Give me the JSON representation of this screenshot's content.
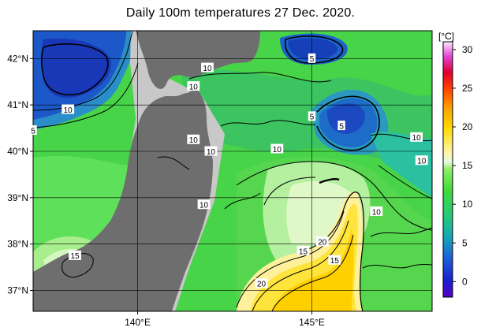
{
  "title": "Daily 100m temperatures 27 Dec. 2020.",
  "lat_ticks": [
    {
      "label": "42°N",
      "value": 42
    },
    {
      "label": "41°N",
      "value": 41
    },
    {
      "label": "40°N",
      "value": 40
    },
    {
      "label": "39°N",
      "value": 39
    },
    {
      "label": "38°N",
      "value": 38
    },
    {
      "label": "37°N",
      "value": 37
    }
  ],
  "lon_ticks": [
    {
      "label": "140°E",
      "value": 140
    },
    {
      "label": "145°E",
      "value": 145
    }
  ],
  "colorbar": {
    "unit": "[°C]",
    "range": [
      -2,
      31
    ],
    "ticks": [
      "30",
      "25",
      "20",
      "15",
      "10",
      "5",
      "0"
    ]
  },
  "contour_labels": [
    {
      "text": "5",
      "lon": 145.0,
      "lat": 42.0
    },
    {
      "text": "10",
      "lon": 142.0,
      "lat": 41.8
    },
    {
      "text": "10",
      "lon": 141.6,
      "lat": 41.4
    },
    {
      "text": "10",
      "lon": 138.0,
      "lat": 40.9
    },
    {
      "text": "5",
      "lon": 137.0,
      "lat": 40.45
    },
    {
      "text": "5",
      "lon": 145.0,
      "lat": 40.75
    },
    {
      "text": "5",
      "lon": 145.85,
      "lat": 40.55
    },
    {
      "text": "10",
      "lon": 141.6,
      "lat": 40.25
    },
    {
      "text": "10",
      "lon": 142.1,
      "lat": 40.0
    },
    {
      "text": "10",
      "lon": 144.0,
      "lat": 40.05
    },
    {
      "text": "10",
      "lon": 148.0,
      "lat": 40.3
    },
    {
      "text": "10",
      "lon": 148.15,
      "lat": 39.8
    },
    {
      "text": "10",
      "lon": 141.9,
      "lat": 38.85
    },
    {
      "text": "10",
      "lon": 146.85,
      "lat": 38.7
    },
    {
      "text": "20",
      "lon": 145.3,
      "lat": 38.05
    },
    {
      "text": "15",
      "lon": 144.75,
      "lat": 37.85
    },
    {
      "text": "15",
      "lon": 145.65,
      "lat": 37.65
    },
    {
      "text": "15",
      "lon": 138.2,
      "lat": 37.75
    },
    {
      "text": "20",
      "lon": 143.55,
      "lat": 37.15
    }
  ]
}
